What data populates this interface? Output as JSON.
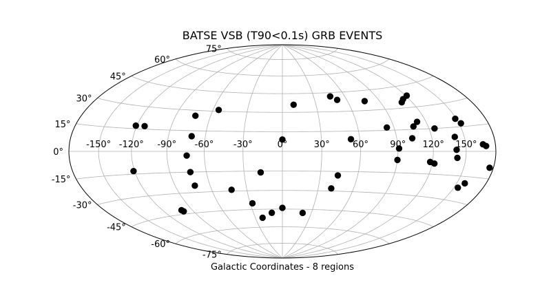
{
  "chart_data": {
    "type": "scatter",
    "projection": "hammer",
    "title": "BATSE VSB (T90<0.1s) GRB EVENTS",
    "xlabel": "Galactic Coordinates - 8 regions",
    "ylabel": "",
    "xlim": [
      -180,
      180
    ],
    "ylim": [
      -90,
      90
    ],
    "grid": true,
    "colors": {
      "points": "#000000",
      "grid": "#b0b0b0",
      "frame": "#000000"
    },
    "lon_ticks": [
      {
        "value": -150,
        "label": "-150°"
      },
      {
        "value": -120,
        "label": "-120°"
      },
      {
        "value": -90,
        "label": "-90°"
      },
      {
        "value": -60,
        "label": "-60°"
      },
      {
        "value": -30,
        "label": "-30°"
      },
      {
        "value": 0,
        "label": "0°"
      },
      {
        "value": 30,
        "label": "30°"
      },
      {
        "value": 60,
        "label": "60°"
      },
      {
        "value": 90,
        "label": "90°"
      },
      {
        "value": 120,
        "label": "120°"
      },
      {
        "value": 150,
        "label": "150°"
      }
    ],
    "lat_ticks": [
      {
        "value": 75,
        "label": "75°"
      },
      {
        "value": 60,
        "label": "60°"
      },
      {
        "value": 45,
        "label": "45°"
      },
      {
        "value": 30,
        "label": "30°"
      },
      {
        "value": 15,
        "label": "15°"
      },
      {
        "value": 0,
        "label": "0°"
      },
      {
        "value": -15,
        "label": "-15°"
      },
      {
        "value": -30,
        "label": "-30°"
      },
      {
        "value": -45,
        "label": "-45°"
      },
      {
        "value": -60,
        "label": "-60°"
      },
      {
        "value": -75,
        "label": "-75°"
      }
    ],
    "points": [
      {
        "lon": 10,
        "lat": 36
      },
      {
        "lon": 46,
        "lat": 42
      },
      {
        "lon": 51,
        "lat": 39
      },
      {
        "lon": 76,
        "lat": 37
      },
      {
        "lon": 110,
        "lat": 34
      },
      {
        "lon": 114,
        "lat": 36
      },
      {
        "lon": 121,
        "lat": 38
      },
      {
        "lon": -55,
        "lat": 31
      },
      {
        "lon": -73,
        "lat": 26
      },
      {
        "lon": -121,
        "lat": 17
      },
      {
        "lon": -113,
        "lat": 17
      },
      {
        "lon": -71,
        "lat": 11
      },
      {
        "lon": 0,
        "lat": 9
      },
      {
        "lon": 53,
        "lat": 9
      },
      {
        "lon": 84,
        "lat": 17
      },
      {
        "lon": 107,
        "lat": 17
      },
      {
        "lon": 112,
        "lat": 20
      },
      {
        "lon": 125,
        "lat": 15
      },
      {
        "lon": 149,
        "lat": 20
      },
      {
        "lon": 152,
        "lat": 17
      },
      {
        "lon": 103,
        "lat": 9
      },
      {
        "lon": 141,
        "lat": 9
      },
      {
        "lon": 167,
        "lat": 4
      },
      {
        "lon": 170,
        "lat": 3
      },
      {
        "lon": 91,
        "lat": 2
      },
      {
        "lon": 141,
        "lat": 1
      },
      {
        "lon": -74,
        "lat": -3
      },
      {
        "lon": 90,
        "lat": -6
      },
      {
        "lon": 118,
        "lat": -7
      },
      {
        "lon": 122,
        "lat": -8
      },
      {
        "lon": 142,
        "lat": -4
      },
      {
        "lon": 176,
        "lat": -9
      },
      {
        "lon": -121,
        "lat": -13
      },
      {
        "lon": -73,
        "lat": -15
      },
      {
        "lon": -17,
        "lat": -16
      },
      {
        "lon": 44,
        "lat": -18
      },
      {
        "lon": 154,
        "lat": -22
      },
      {
        "lon": 158,
        "lat": -19
      },
      {
        "lon": -73,
        "lat": -25
      },
      {
        "lon": -43,
        "lat": -29
      },
      {
        "lon": 41,
        "lat": -28
      },
      {
        "lon": -28,
        "lat": -40
      },
      {
        "lon": -100,
        "lat": -43
      },
      {
        "lon": -101,
        "lat": -42
      },
      {
        "lon": 0,
        "lat": -44
      },
      {
        "lon": -11,
        "lat": -48
      },
      {
        "lon": 21,
        "lat": -48
      },
      {
        "lon": -22,
        "lat": -52
      }
    ]
  }
}
